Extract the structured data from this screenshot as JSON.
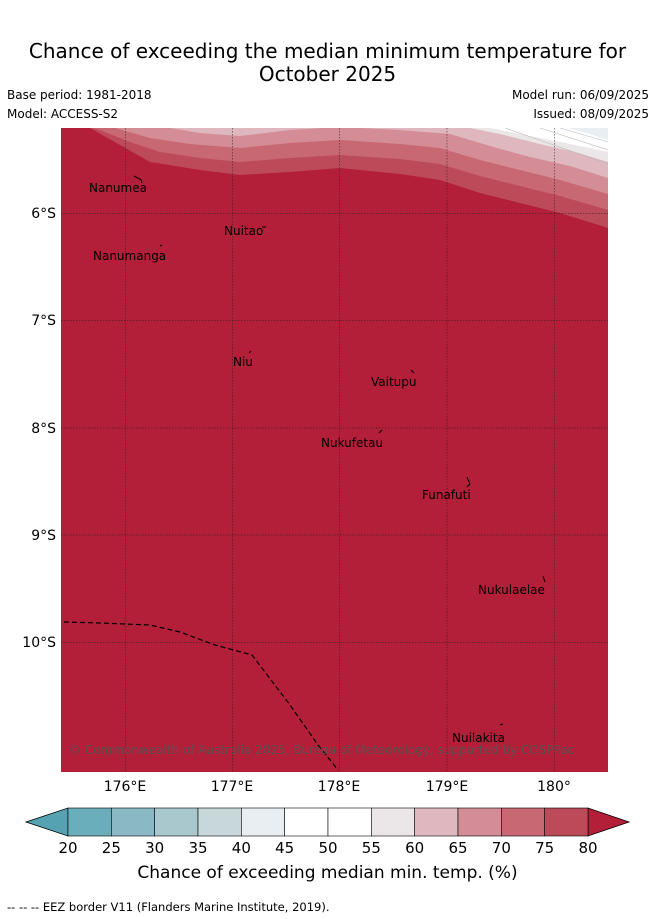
{
  "title": {
    "line1": "Chance of exceeding the median minimum temperature for",
    "line2": "October 2025"
  },
  "meta": {
    "base_period": "Base period: 1981-2018",
    "model": "Model: ACCESS-S2",
    "model_run": "Model run: 06/09/2025",
    "issued": "Issued: 08/09/2025"
  },
  "map": {
    "lon_range": [
      175.5,
      180.5
    ],
    "lat_range": [
      -11.2,
      -5.15
    ],
    "lon_ticks": [
      "176°E",
      "177°E",
      "178°E",
      "179°E",
      "180°"
    ],
    "lat_ticks": [
      "6°S",
      "7°S",
      "8°S",
      "9°S",
      "10°S"
    ],
    "dominant_band": "80+",
    "places": [
      {
        "name": "Nanumea"
      },
      {
        "name": "Nuitao"
      },
      {
        "name": "Nanumanga"
      },
      {
        "name": "Niu"
      },
      {
        "name": "Vaitupu"
      },
      {
        "name": "Nukufetau"
      },
      {
        "name": "Funafuti"
      },
      {
        "name": "Nukulaelae"
      },
      {
        "name": "Nuilakita"
      }
    ],
    "copyright": "© Commonwealth of Australia 2025, Bureau of Meteorology, supported by COSPPac"
  },
  "colorbar": {
    "ticks": [
      "20",
      "25",
      "30",
      "35",
      "40",
      "45",
      "50",
      "55",
      "60",
      "65",
      "70",
      "75",
      "80"
    ],
    "colors": [
      "#6aadbb",
      "#8ab8c4",
      "#a8c8cd",
      "#c8d8da",
      "#e8eef1",
      "#ffffff",
      "#ffffff",
      "#ebe6e8",
      "#dfb8bf",
      "#d48d97",
      "#c86872",
      "#bd4a58"
    ],
    "under_color": "#55a2b2",
    "over_color": "#b31e38",
    "label": "Chance of exceeding median min. temp. (%)"
  },
  "footer": "--  --  -- EEZ border V11 (Flanders Marine Institute, 2019)."
}
